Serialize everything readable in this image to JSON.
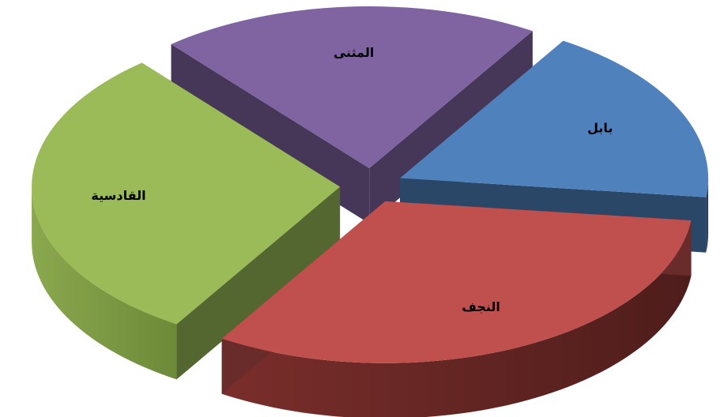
{
  "chart_data": {
    "type": "pie",
    "style": "3d-exploded",
    "title": "",
    "categories": [
      "بابل",
      "النجف",
      "القادسية",
      "المثنى"
    ],
    "values": [
      18,
      32,
      30,
      20
    ],
    "colors": [
      "#4F81BD",
      "#C0504D",
      "#9BBB59",
      "#8064A2"
    ],
    "legend": "none"
  }
}
